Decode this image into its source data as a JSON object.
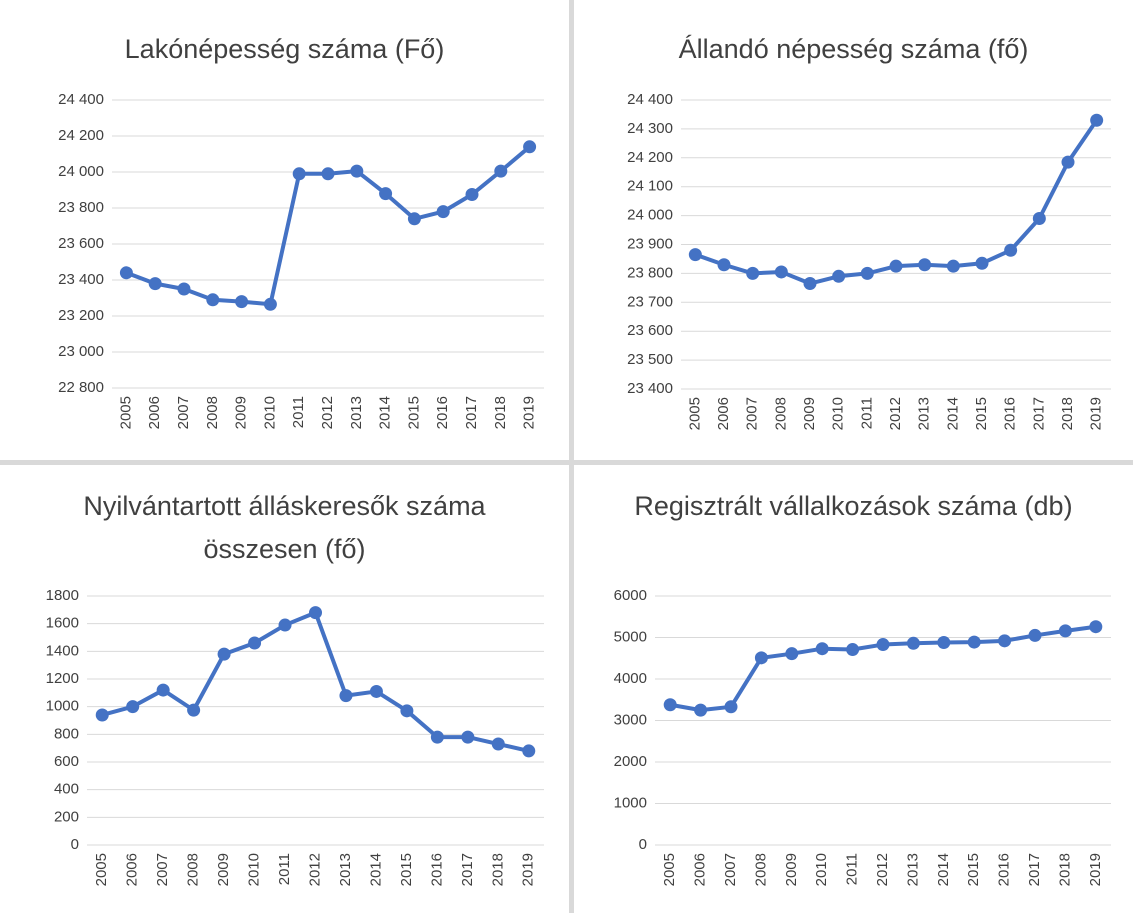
{
  "chart_data": [
    {
      "type": "line",
      "title": "Lakónépesség száma (Fő)",
      "color": "#4472c4",
      "grid": true,
      "categories": [
        "2005",
        "2006",
        "2007",
        "2008",
        "2009",
        "2010",
        "2011",
        "2012",
        "2013",
        "2014",
        "2015",
        "2016",
        "2017",
        "2018",
        "2019"
      ],
      "values": [
        23440,
        23380,
        23350,
        23290,
        23280,
        23265,
        23990,
        23990,
        24005,
        23880,
        23740,
        23780,
        23875,
        24005,
        24140
      ],
      "ylim": [
        22800,
        24400
      ],
      "yticks": [
        {
          "value": 22800,
          "label": "22 800"
        },
        {
          "value": 23000,
          "label": "23 000"
        },
        {
          "value": 23200,
          "label": "23 200"
        },
        {
          "value": 23400,
          "label": "23 400"
        },
        {
          "value": 23600,
          "label": "23 600"
        },
        {
          "value": 23800,
          "label": "23 800"
        },
        {
          "value": 24000,
          "label": "24 000"
        },
        {
          "value": 24200,
          "label": "24 200"
        },
        {
          "value": 24400,
          "label": "24 400"
        }
      ]
    },
    {
      "type": "line",
      "title": "Állandó népesség száma (fő)",
      "color": "#4472c4",
      "grid": true,
      "categories": [
        "2005",
        "2006",
        "2007",
        "2008",
        "2009",
        "2010",
        "2011",
        "2012",
        "2013",
        "2014",
        "2015",
        "2016",
        "2017",
        "2018",
        "2019"
      ],
      "values": [
        23865,
        23830,
        23800,
        23805,
        23765,
        23790,
        23800,
        23825,
        23830,
        23825,
        23835,
        23880,
        23990,
        24185,
        24330
      ],
      "ylim": [
        23400,
        24400
      ],
      "yticks": [
        {
          "value": 23400,
          "label": "23 400"
        },
        {
          "value": 23500,
          "label": "23 500"
        },
        {
          "value": 23600,
          "label": "23 600"
        },
        {
          "value": 23700,
          "label": "23 700"
        },
        {
          "value": 23800,
          "label": "23 800"
        },
        {
          "value": 23900,
          "label": "23 900"
        },
        {
          "value": 24000,
          "label": "24 000"
        },
        {
          "value": 24100,
          "label": "24 100"
        },
        {
          "value": 24200,
          "label": "24 200"
        },
        {
          "value": 24300,
          "label": "24 300"
        },
        {
          "value": 24400,
          "label": "24 400"
        }
      ]
    },
    {
      "type": "line",
      "title": "Nyilvántartott álláskeresők száma összesen (fő)",
      "color": "#4472c4",
      "grid": true,
      "categories": [
        "2005",
        "2006",
        "2007",
        "2008",
        "2009",
        "2010",
        "2011",
        "2012",
        "2013",
        "2014",
        "2015",
        "2016",
        "2017",
        "2018",
        "2019"
      ],
      "values": [
        940,
        1000,
        1120,
        975,
        1380,
        1460,
        1590,
        1680,
        1080,
        1110,
        970,
        780,
        780,
        730,
        680
      ],
      "ylim": [
        0,
        1800
      ],
      "yticks": [
        0,
        200,
        400,
        600,
        800,
        1000,
        1200,
        1400,
        1600,
        1800
      ]
    },
    {
      "type": "line",
      "title": "Regisztrált vállalkozások száma (db)",
      "color": "#4472c4",
      "grid": true,
      "categories": [
        "2005",
        "2006",
        "2007",
        "2008",
        "2009",
        "2010",
        "2011",
        "2012",
        "2013",
        "2014",
        "2015",
        "2016",
        "2017",
        "2018",
        "2019"
      ],
      "values": [
        3380,
        3250,
        3330,
        4510,
        4610,
        4730,
        4710,
        4830,
        4860,
        4880,
        4890,
        4920,
        5050,
        5160,
        5260
      ],
      "ylim": [
        0,
        6000
      ],
      "yticks": [
        0,
        1000,
        2000,
        3000,
        4000,
        5000,
        6000
      ]
    }
  ]
}
